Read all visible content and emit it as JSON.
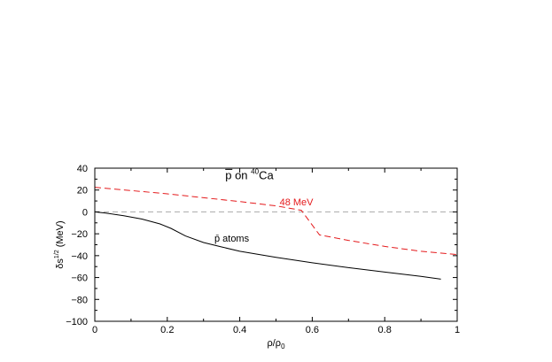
{
  "chart_data": {
    "type": "line",
    "title": "p̄ on ⁴⁰Ca",
    "title_parts": {
      "symbol": "p",
      "on": " on ",
      "mass": "40",
      "element": "Ca"
    },
    "xlabel": "ρ/ρ₀",
    "xlabel_parts": {
      "main": "ρ/ρ",
      "sub": "0"
    },
    "ylabel": "δs^{1/2} (MeV)",
    "ylabel_parts": {
      "main": "δs",
      "sup": "1/2",
      "unit": " (MeV)"
    },
    "xlim": [
      0,
      1
    ],
    "ylim": [
      -100,
      40
    ],
    "x_ticks": [
      0,
      0.2,
      0.4,
      0.6,
      0.8,
      1
    ],
    "x_tick_labels": [
      "0",
      "0.2",
      "0.4",
      "0.6",
      "0.8",
      "1"
    ],
    "y_ticks": [
      -100,
      -80,
      -60,
      -40,
      -20,
      0,
      20,
      40
    ],
    "y_tick_labels": [
      "−100",
      "−80",
      "−60",
      "−40",
      "−20",
      "0",
      "20",
      "40"
    ],
    "grid": false,
    "reference_line": {
      "y": 0,
      "color": "#aaaaaa",
      "style": "dashed"
    },
    "series": [
      {
        "name": "p̄ atoms",
        "color": "#000000",
        "style": "solid",
        "x": [
          0,
          0.03,
          0.08,
          0.13,
          0.18,
          0.21,
          0.25,
          0.3,
          0.35,
          0.4,
          0.5,
          0.6,
          0.7,
          0.8,
          0.9,
          0.955
        ],
        "y": [
          0,
          -1,
          -3.5,
          -6.5,
          -11,
          -15,
          -22,
          -28,
          -32,
          -36,
          -41.5,
          -46.5,
          -51,
          -55,
          -59,
          -61.5
        ]
      },
      {
        "name": "48 MeV",
        "color": "#e41a1c",
        "style": "dashed",
        "x": [
          0,
          0.1,
          0.2,
          0.3,
          0.4,
          0.5,
          0.57,
          0.62,
          0.7,
          0.8,
          0.9,
          1.0
        ],
        "y": [
          22.5,
          19.5,
          16.5,
          13,
          9.5,
          5.5,
          1.5,
          -21,
          -26,
          -31.5,
          -36,
          -39
        ]
      }
    ],
    "annotations": [
      {
        "text": "48 MeV",
        "x": 0.51,
        "y": 6,
        "color": "#e41a1c"
      },
      {
        "text": "p̄ atoms",
        "x": 0.33,
        "y": -27,
        "color": "#000000"
      }
    ]
  }
}
